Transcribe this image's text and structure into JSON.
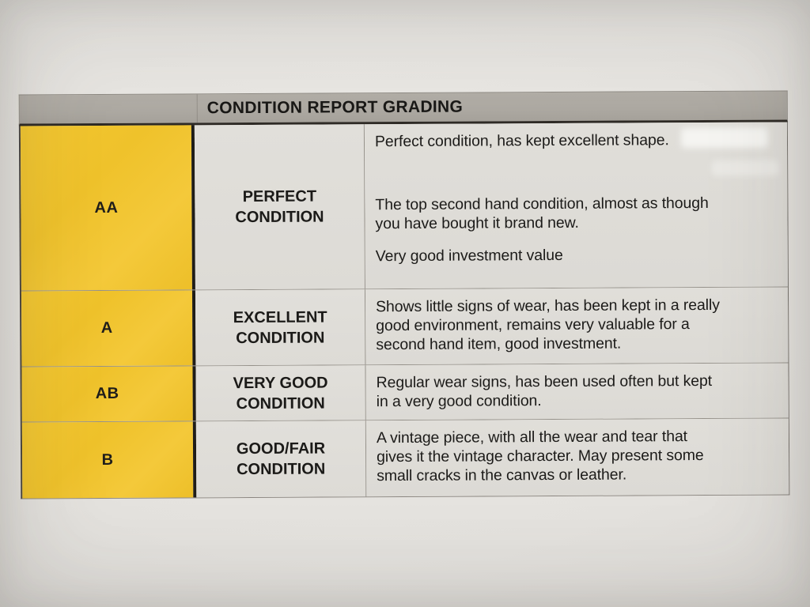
{
  "document": {
    "header": {
      "title": "CONDITION REPORT GRADING"
    },
    "rows": [
      {
        "grade": "AA",
        "label": "PERFECT CONDITION",
        "description": {
          "paragraphs": [
            {
              "lines": [
                "Perfect condition, has kept excellent shape."
              ]
            },
            {
              "lines": [
                "The top second hand condition, almost as though",
                "you have bought it brand new."
              ]
            },
            {
              "lines": [
                "Very good investment value"
              ]
            }
          ]
        }
      },
      {
        "grade": "A",
        "label": "EXCELLENT CONDITION",
        "description": {
          "paragraphs": [
            {
              "lines": [
                "Shows little signs of wear, has been kept in a really",
                "good environment, remains very valuable for a",
                "second hand item, good investment."
              ]
            }
          ]
        }
      },
      {
        "grade": "AB",
        "label": "VERY GOOD CONDITION",
        "description": {
          "paragraphs": [
            {
              "lines": [
                "Regular wear signs, has been used often but kept",
                "in a very good condition."
              ]
            }
          ]
        }
      },
      {
        "grade": "B",
        "label": "GOOD/FAIR CONDITION",
        "description": {
          "paragraphs": [
            {
              "lines": [
                "A vintage piece, with all the wear and tear that",
                "gives it the vintage character. May present some",
                "small cracks in the canvas or leather."
              ]
            }
          ]
        }
      }
    ],
    "colors": {
      "grade_cell_bg": "#F0C42E",
      "header_bg": "#ACA8A1",
      "cell_bg": "#DEDCD7",
      "paper_bg": "#E4E2DE",
      "border_dark": "#2E2A25",
      "text": "#1C1B19"
    }
  }
}
